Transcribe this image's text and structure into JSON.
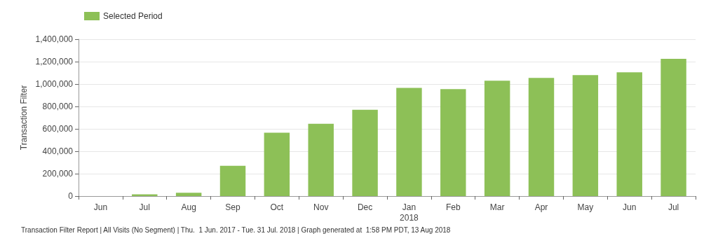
{
  "chart_data": {
    "type": "bar",
    "ylabel": "Transaction Filter",
    "categories": [
      "Jun",
      "Jul",
      "Aug",
      "Sep",
      "Oct",
      "Nov",
      "Dec",
      "Jan\n2018",
      "Feb",
      "Mar",
      "Apr",
      "May",
      "Jun",
      "Jul"
    ],
    "series": [
      {
        "name": "Selected Period",
        "color": "#8dc057",
        "values": [
          0,
          15000,
          30000,
          270000,
          565000,
          645000,
          770000,
          965000,
          955000,
          1030000,
          1055000,
          1080000,
          1105000,
          1225000
        ]
      }
    ],
    "ylim": [
      0,
      1400000
    ],
    "yticks": [
      0,
      {
        "value": 200000,
        "label": "200,000"
      },
      {
        "value": 400000,
        "label": "400,000"
      },
      {
        "value": 600000,
        "label": "600,000"
      },
      {
        "value": 800000,
        "label": "800,000"
      },
      {
        "value": 1000000,
        "label": "1,000,000"
      },
      {
        "value": 1200000,
        "label": "1,200,000"
      },
      {
        "value": 1400000,
        "label": "1,400,000"
      }
    ],
    "grid": "y",
    "legend": "top left",
    "annotations": [
      "Transaction Filter Report | All Visits (No Segment) | Thu.  1 Jun. 2017 - Tue. 31 Jul. 2018 | Graph generated at  1:58 PM PDT, 13 Aug 2018"
    ]
  }
}
